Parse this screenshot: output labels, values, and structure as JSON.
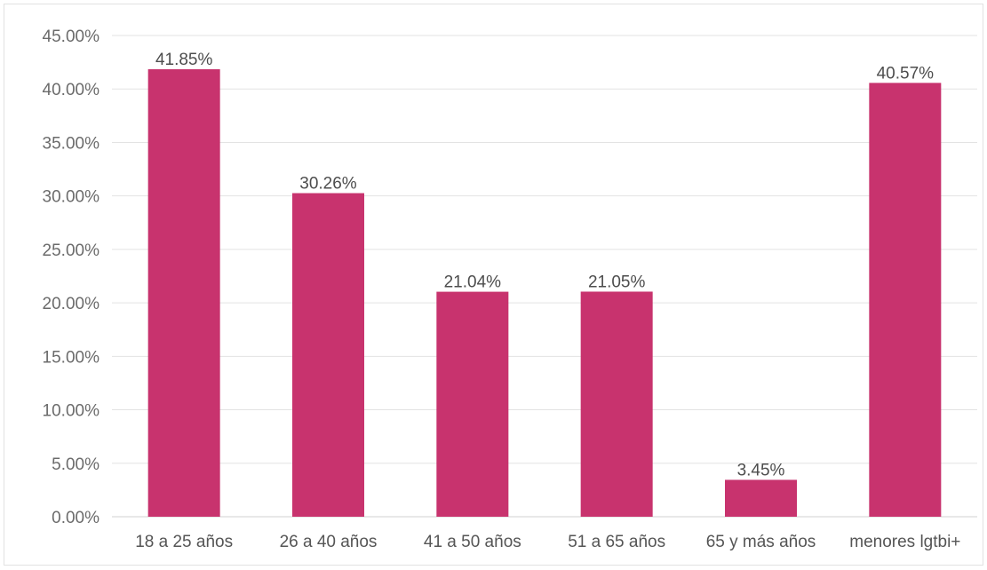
{
  "chart_data": {
    "type": "bar",
    "title": "",
    "xlabel": "",
    "ylabel": "",
    "categories": [
      "18 a 25 años",
      "26 a 40 años",
      "41 a 50 años",
      "51 a 65 años",
      "65 y más años",
      "menores lgtbi+"
    ],
    "values": [
      41.85,
      30.26,
      21.04,
      21.05,
      3.45,
      40.57
    ],
    "data_labels": [
      "41.85%",
      "30.26%",
      "21.04%",
      "21.05%",
      "3.45%",
      "40.57%"
    ],
    "ylim": [
      0,
      45
    ],
    "yticks": [
      0,
      5,
      10,
      15,
      20,
      25,
      30,
      35,
      40,
      45
    ],
    "ytick_labels": [
      "0.00%",
      "5.00%",
      "10.00%",
      "15.00%",
      "20.00%",
      "25.00%",
      "30.00%",
      "35.00%",
      "40.00%",
      "45.00%"
    ],
    "grid": true,
    "legend": "none",
    "bar_color": "#c8336e"
  }
}
